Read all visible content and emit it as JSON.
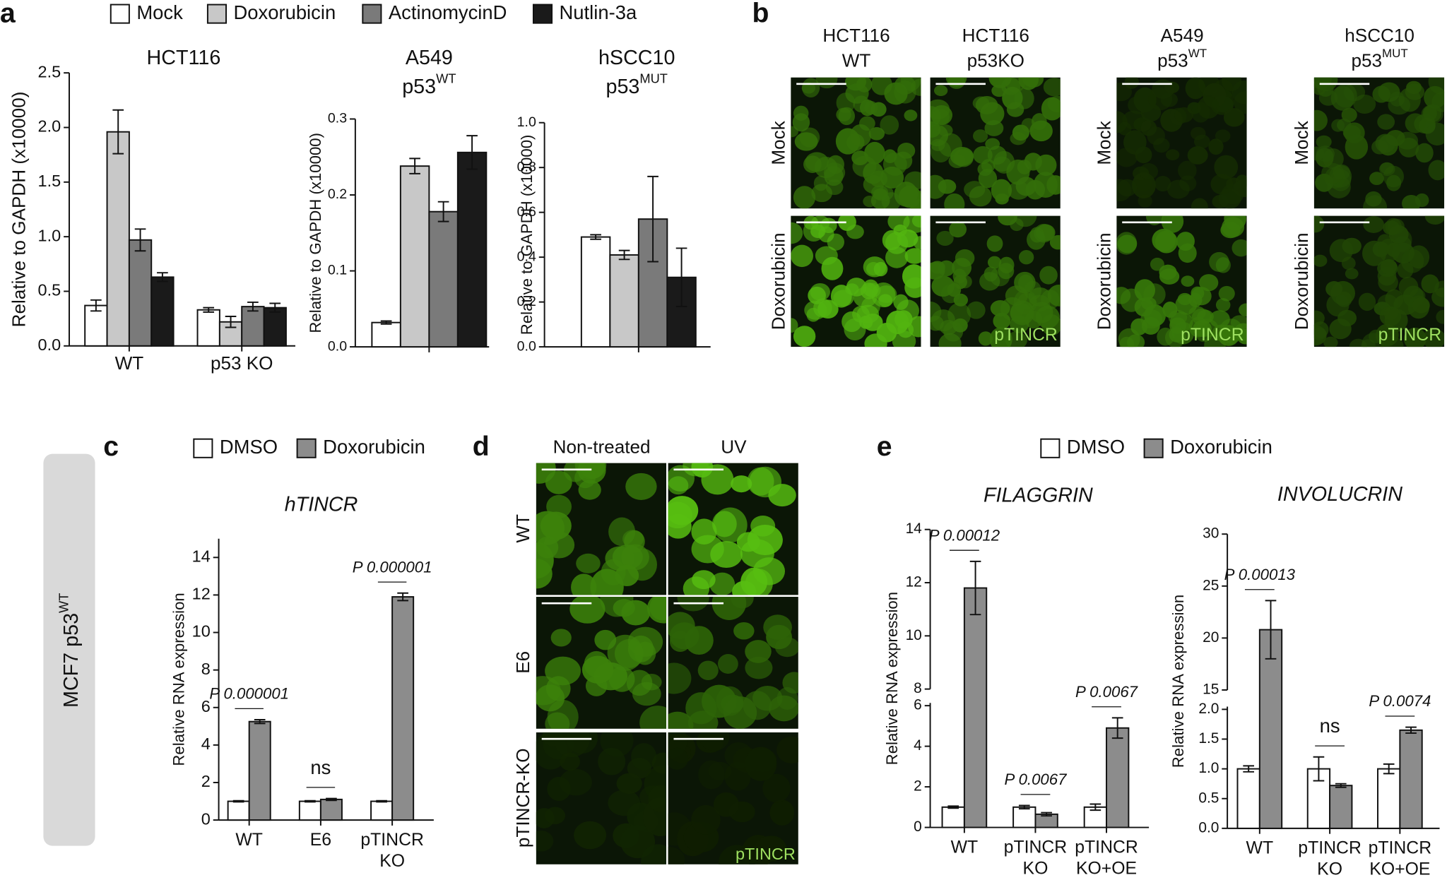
{
  "panel_labels": [
    "a",
    "b",
    "c",
    "d",
    "e"
  ],
  "chart_data": [
    {
      "type": "bar",
      "title": "HCT116",
      "ylabel": "Relative to GAPDH (x10000)",
      "categories": [
        "WT",
        "p53 KO"
      ],
      "series": [
        {
          "name": "Mock",
          "color": "#ffffff",
          "values": [
            0.37,
            0.33
          ],
          "errors": [
            0.05,
            0.02
          ]
        },
        {
          "name": "Doxorubicin",
          "color": "#c8c8c8",
          "values": [
            1.96,
            0.22
          ],
          "errors": [
            0.2,
            0.05
          ]
        },
        {
          "name": "ActinomycinD",
          "color": "#7a7a7a",
          "values": [
            0.97,
            0.36
          ],
          "errors": [
            0.1,
            0.04
          ]
        },
        {
          "name": "Nutlin-3a",
          "color": "#1a1a1a",
          "values": [
            0.63,
            0.35
          ],
          "errors": [
            0.04,
            0.04
          ]
        }
      ],
      "ylim": [
        0,
        2.5
      ],
      "yticks": [
        {
          "value": 0,
          "label": "0.0"
        },
        0.5,
        {
          "value": 1,
          "label": "1.0"
        },
        1.5,
        {
          "value": 2,
          "label": "2.0"
        },
        2.5
      ]
    },
    {
      "type": "bar",
      "title": "A549",
      "subtitle": {
        "text": "p53",
        "sup": "WT"
      },
      "ylabel": "Relative to GAPDH (x10000)",
      "categories": [
        null
      ],
      "series": [
        {
          "name": "Mock",
          "color": "#ffffff",
          "values": [
            0.032
          ],
          "errors": [
            0.002
          ]
        },
        {
          "name": "Doxorubicin",
          "color": "#c8c8c8",
          "values": [
            0.238
          ],
          "errors": [
            0.01
          ]
        },
        {
          "name": "ActinomycinD",
          "color": "#7a7a7a",
          "values": [
            0.178
          ],
          "errors": [
            0.013
          ]
        },
        {
          "name": "Nutlin-3a",
          "color": "#1a1a1a",
          "values": [
            0.256
          ],
          "errors": [
            0.022
          ]
        }
      ],
      "ylim": [
        0,
        0.3
      ],
      "yticks": [
        {
          "value": 0,
          "label": "0.0"
        },
        0.1,
        0.2,
        0.3
      ]
    },
    {
      "type": "bar",
      "title": "hSCC10",
      "subtitle": {
        "text": "p53",
        "sup": "MUT"
      },
      "ylabel": "Relative to GAPDH (x10000)",
      "categories": [
        null
      ],
      "series": [
        {
          "name": "Mock",
          "color": "#ffffff",
          "values": [
            0.49
          ],
          "errors": [
            0.01
          ]
        },
        {
          "name": "Doxorubicin",
          "color": "#c8c8c8",
          "values": [
            0.41
          ],
          "errors": [
            0.02
          ]
        },
        {
          "name": "ActinomycinD",
          "color": "#7a7a7a",
          "values": [
            0.57
          ],
          "errors": [
            0.19
          ]
        },
        {
          "name": "Nutlin-3a",
          "color": "#1a1a1a",
          "values": [
            0.31
          ],
          "errors": [
            0.13
          ]
        }
      ],
      "ylim": [
        0,
        1
      ],
      "yticks": [
        {
          "value": 0,
          "label": "0.0"
        },
        0.2,
        0.4,
        0.6,
        0.8,
        {
          "value": 1,
          "label": "1.0"
        }
      ]
    },
    {
      "type": "bar",
      "title": "hTINCR",
      "ylabel": "Relative RNA expression",
      "categories": [
        [
          "WT"
        ],
        [
          "E6"
        ],
        [
          "pTINCR",
          "KO"
        ]
      ],
      "series": [
        {
          "name": "DMSO",
          "color": "#ffffff",
          "values": [
            1.0,
            1.0,
            1.0
          ],
          "errors": [
            0.03,
            0.03,
            0.03
          ]
        },
        {
          "name": "Doxorubicin",
          "color": "#8c8c8c",
          "values": [
            5.25,
            1.1,
            11.9
          ],
          "errors": [
            0.1,
            0.05,
            0.2
          ]
        }
      ],
      "annotations": [
        "P 0.000001",
        "ns",
        "P 0.000001"
      ],
      "ylim": [
        0,
        15
      ],
      "yticks": [
        0,
        2,
        4,
        6,
        8,
        10,
        12,
        14
      ]
    },
    {
      "type": "bar",
      "title": "FILAGGRIN",
      "ylabel": "Relative RNA expression",
      "categories": [
        [
          "WT"
        ],
        [
          "pTINCR",
          "KO"
        ],
        [
          "pTINCR",
          "KO+OE"
        ]
      ],
      "series": [
        {
          "name": "DMSO",
          "color": "#ffffff",
          "values": [
            1.0,
            1.0,
            1.0
          ],
          "errors": [
            0.05,
            0.08,
            0.15
          ]
        },
        {
          "name": "Doxorubicin",
          "color": "#8c8c8c",
          "values": [
            11.8,
            0.65,
            4.9
          ],
          "errors": [
            1.0,
            0.08,
            0.5
          ]
        }
      ],
      "annotations": [
        "P 0.00012",
        "P 0.0067",
        "P 0.0067"
      ],
      "ylim": [
        0,
        14
      ],
      "ybreak": [
        6,
        8
      ],
      "yticks": [
        0,
        2,
        4,
        6,
        8,
        10,
        12,
        14
      ]
    },
    {
      "type": "bar",
      "title": "INVOLUCRIN",
      "ylabel": "Relative RNA expression",
      "categories": [
        [
          "WT"
        ],
        [
          "pTINCR",
          "KO"
        ],
        [
          "pTINCR",
          "KO+OE"
        ]
      ],
      "series": [
        {
          "name": "DMSO",
          "color": "#ffffff",
          "values": [
            1.0,
            1.0,
            1.0
          ],
          "errors": [
            0.05,
            0.2,
            0.08
          ]
        },
        {
          "name": "Doxorubicin",
          "color": "#8c8c8c",
          "values": [
            20.8,
            0.72,
            1.65
          ],
          "errors": [
            2.8,
            0.03,
            0.05
          ]
        }
      ],
      "annotations": [
        "P 0.00013",
        "ns",
        "P 0.0074"
      ],
      "ylim": [
        0,
        30
      ],
      "ybreak": [
        2,
        15
      ],
      "yticks": [
        {
          "value": 0,
          "label": "0.0"
        },
        0.5,
        {
          "value": 1,
          "label": "1.0"
        },
        1.5,
        {
          "value": 2,
          "label": "2.0"
        },
        15,
        20,
        25,
        30
      ]
    }
  ],
  "panel_b": {
    "columns": [
      {
        "line1": "HCT116",
        "line2": "WT"
      },
      {
        "line1": "HCT116",
        "line2": "p53KO"
      },
      {
        "line1": "A549",
        "line2": "p53",
        "sup": "WT"
      },
      {
        "line1": "hSCC10",
        "line2": "p53",
        "sup": "MUT"
      }
    ],
    "rows": [
      "Mock",
      "Doxorubicin"
    ],
    "stain": "pTINCR"
  },
  "panel_d": {
    "side_label": {
      "text": "MCF7 p53",
      "sup": "WT"
    },
    "columns": [
      "Non-treated",
      "UV"
    ],
    "rows": [
      "WT",
      "E6",
      "pTINCR-KO"
    ],
    "stain": "pTINCR"
  }
}
